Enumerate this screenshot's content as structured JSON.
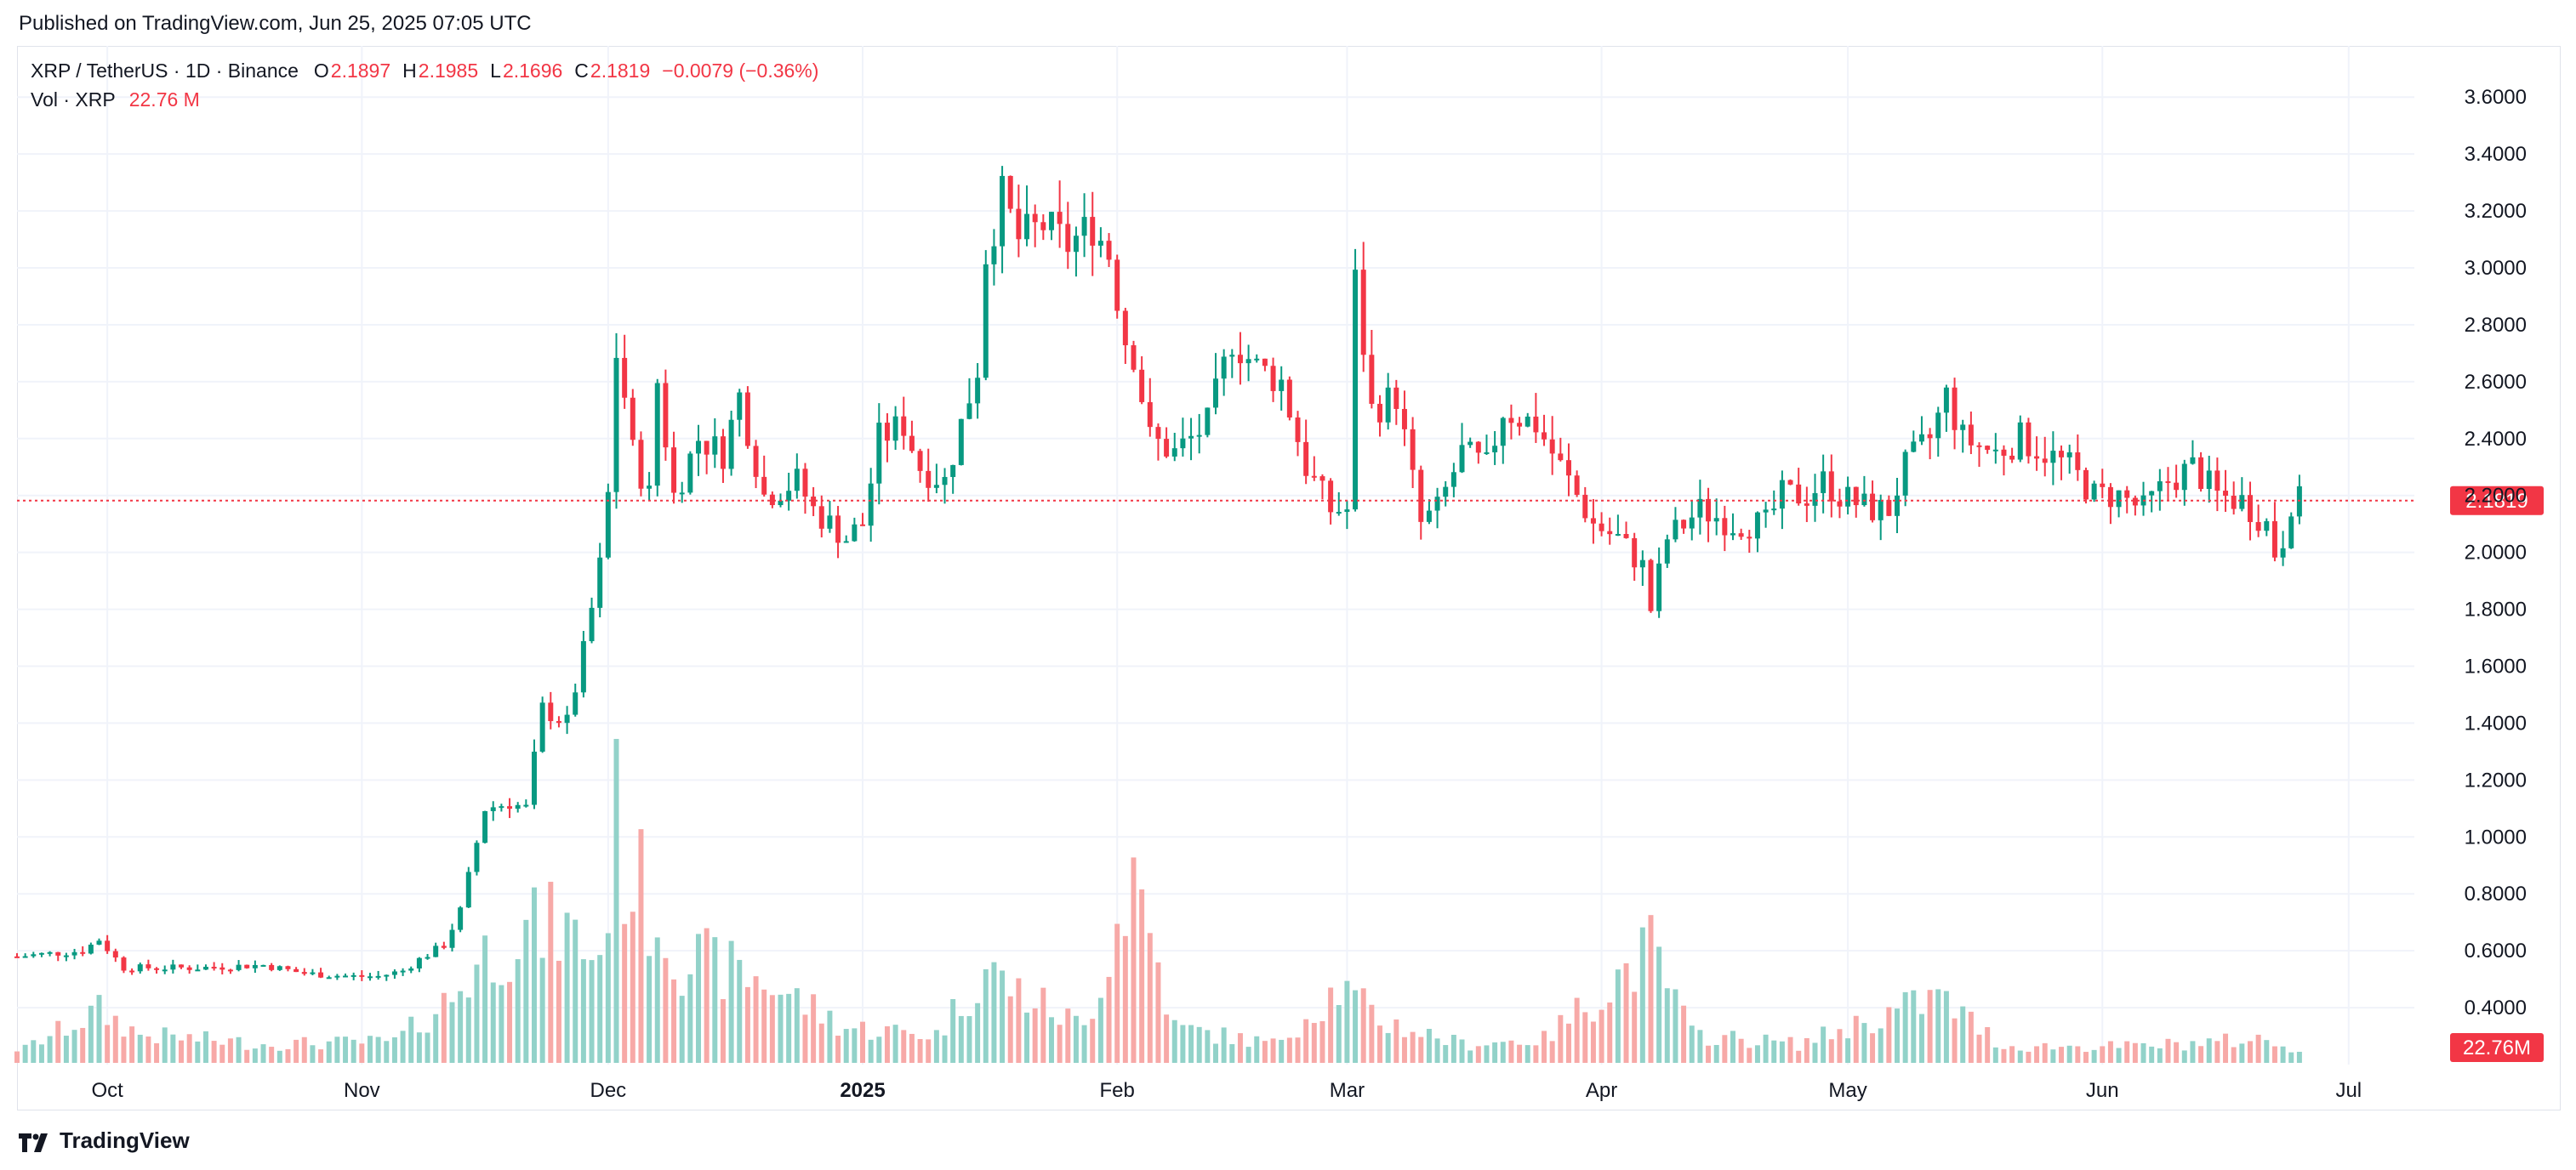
{
  "header": {
    "published": "Published on TradingView.com, Jun 25, 2025 07:05 UTC"
  },
  "legend": {
    "symbol": "XRP / TetherUS · 1D · Binance",
    "o_label": "O",
    "o_value": "2.1897",
    "h_label": "H",
    "h_value": "2.1985",
    "l_label": "L",
    "l_value": "2.1696",
    "c_label": "C",
    "c_value": "2.1819",
    "change": "−0.0079 (−0.36%)",
    "vol_label": "Vol · XRP",
    "vol_value": "22.76 M"
  },
  "footer": {
    "brand": "TradingView"
  },
  "colors": {
    "up": "#089981",
    "down": "#f23645",
    "up_vol": "#92d2c9",
    "down_vol": "#f7a9a7",
    "grid": "#f0f3fa",
    "axis_text": "#131722"
  },
  "chart_data": {
    "type": "candlestick",
    "interval": "1D",
    "y_axis": {
      "ticks": [
        "3.6000",
        "3.4000",
        "3.2000",
        "3.0000",
        "2.8000",
        "2.6000",
        "2.4000",
        "2.2000",
        "2.0000",
        "1.8000",
        "1.6000",
        "1.4000",
        "1.2000",
        "1.0000",
        "0.8000",
        "0.6000",
        "0.4000"
      ],
      "range": [
        0.2,
        3.78
      ]
    },
    "x_axis": {
      "ticks": [
        {
          "label": "Oct",
          "date": "2024-10-01",
          "bold": false
        },
        {
          "label": "Nov",
          "date": "2024-11-01",
          "bold": false
        },
        {
          "label": "Dec",
          "date": "2024-12-01",
          "bold": false
        },
        {
          "label": "2025",
          "date": "2025-01-01",
          "bold": true
        },
        {
          "label": "Feb",
          "date": "2025-02-01",
          "bold": false
        },
        {
          "label": "Mar",
          "date": "2025-03-01",
          "bold": false
        },
        {
          "label": "Apr",
          "date": "2025-04-01",
          "bold": false
        },
        {
          "label": "May",
          "date": "2025-05-01",
          "bold": false
        },
        {
          "label": "Jun",
          "date": "2025-06-01",
          "bold": false
        },
        {
          "label": "Jul",
          "date": "2025-07-01",
          "bold": false
        }
      ],
      "range": [
        "2024-09-20",
        "2025-07-09"
      ]
    },
    "last_price": {
      "value": 2.1819,
      "label": "2.1819"
    },
    "last_volume": {
      "value": 22.76,
      "label": "22.76M"
    },
    "close_points": [
      [
        "2024-09-20",
        0.58
      ],
      [
        "2024-09-28",
        0.6
      ],
      [
        "2024-09-30",
        0.64
      ],
      [
        "2024-10-03",
        0.54
      ],
      [
        "2024-10-12",
        0.54
      ],
      [
        "2024-10-20",
        0.55
      ],
      [
        "2024-10-25",
        0.52
      ],
      [
        "2024-10-31",
        0.51
      ],
      [
        "2024-11-03",
        0.51
      ],
      [
        "2024-11-06",
        0.53
      ],
      [
        "2024-11-08",
        0.57
      ],
      [
        "2024-11-11",
        0.62
      ],
      [
        "2024-11-13",
        0.74
      ],
      [
        "2024-11-16",
        1.1
      ],
      [
        "2024-11-19",
        1.12
      ],
      [
        "2024-11-21",
        1.1
      ],
      [
        "2024-11-23",
        1.45
      ],
      [
        "2024-11-26",
        1.4
      ],
      [
        "2024-11-28",
        1.65
      ],
      [
        "2024-11-30",
        1.95
      ],
      [
        "2024-12-01",
        2.2
      ],
      [
        "2024-12-02",
        2.7
      ],
      [
        "2024-12-03",
        2.55
      ],
      [
        "2024-12-04",
        2.35
      ],
      [
        "2024-12-06",
        2.2
      ],
      [
        "2024-12-07",
        2.6
      ],
      [
        "2024-12-09",
        2.2
      ],
      [
        "2024-12-12",
        2.4
      ],
      [
        "2024-12-15",
        2.35
      ],
      [
        "2024-12-17",
        2.55
      ],
      [
        "2024-12-20",
        2.2
      ],
      [
        "2024-12-24",
        2.25
      ],
      [
        "2024-12-26",
        2.15
      ],
      [
        "2024-12-30",
        2.05
      ],
      [
        "2025-01-01",
        2.1
      ],
      [
        "2025-01-03",
        2.4
      ],
      [
        "2025-01-06",
        2.45
      ],
      [
        "2025-01-08",
        2.3
      ],
      [
        "2025-01-11",
        2.25
      ],
      [
        "2025-01-13",
        2.45
      ],
      [
        "2025-01-15",
        2.65
      ],
      [
        "2025-01-16",
        3.05
      ],
      [
        "2025-01-18",
        3.25
      ],
      [
        "2025-01-20",
        3.1
      ],
      [
        "2025-01-23",
        3.15
      ],
      [
        "2025-01-26",
        3.08
      ],
      [
        "2025-01-29",
        3.15
      ],
      [
        "2025-01-31",
        3.05
      ],
      [
        "2025-02-02",
        2.75
      ],
      [
        "2025-02-03",
        2.7
      ],
      [
        "2025-02-05",
        2.4
      ],
      [
        "2025-02-08",
        2.35
      ],
      [
        "2025-02-12",
        2.45
      ],
      [
        "2025-02-15",
        2.75
      ],
      [
        "2025-02-18",
        2.65
      ],
      [
        "2025-02-21",
        2.6
      ],
      [
        "2025-02-24",
        2.3
      ],
      [
        "2025-02-27",
        2.15
      ],
      [
        "2025-03-01",
        2.15
      ],
      [
        "2025-03-02",
        2.95
      ],
      [
        "2025-03-04",
        2.5
      ],
      [
        "2025-03-07",
        2.55
      ],
      [
        "2025-03-10",
        2.1
      ],
      [
        "2025-03-12",
        2.15
      ],
      [
        "2025-03-15",
        2.35
      ],
      [
        "2025-03-18",
        2.3
      ],
      [
        "2025-03-20",
        2.5
      ],
      [
        "2025-03-24",
        2.45
      ],
      [
        "2025-03-27",
        2.3
      ],
      [
        "2025-03-31",
        2.1
      ],
      [
        "2025-04-03",
        2.05
      ],
      [
        "2025-04-06",
        1.95
      ],
      [
        "2025-04-07",
        1.8
      ],
      [
        "2025-04-09",
        2.05
      ],
      [
        "2025-04-13",
        2.15
      ],
      [
        "2025-04-17",
        2.1
      ],
      [
        "2025-04-21",
        2.1
      ],
      [
        "2025-04-23",
        2.2
      ],
      [
        "2025-04-26",
        2.2
      ],
      [
        "2025-04-28",
        2.25
      ],
      [
        "2025-04-30",
        2.2
      ],
      [
        "2025-05-04",
        2.15
      ],
      [
        "2025-05-06",
        2.15
      ],
      [
        "2025-05-08",
        2.3
      ],
      [
        "2025-05-11",
        2.4
      ],
      [
        "2025-05-13",
        2.55
      ],
      [
        "2025-05-15",
        2.4
      ],
      [
        "2025-05-19",
        2.35
      ],
      [
        "2025-05-22",
        2.4
      ],
      [
        "2025-05-25",
        2.35
      ],
      [
        "2025-05-28",
        2.3
      ],
      [
        "2025-05-31",
        2.2
      ],
      [
        "2025-06-03",
        2.2
      ],
      [
        "2025-06-06",
        2.15
      ],
      [
        "2025-06-09",
        2.25
      ],
      [
        "2025-06-12",
        2.3
      ],
      [
        "2025-06-15",
        2.2
      ],
      [
        "2025-06-18",
        2.18
      ],
      [
        "2025-06-21",
        2.1
      ],
      [
        "2025-06-22",
        2.0
      ],
      [
        "2025-06-23",
        2.05
      ],
      [
        "2025-06-24",
        2.18
      ],
      [
        "2025-06-25",
        2.18
      ]
    ],
    "volume_points": [
      [
        "2024-09-22",
        0.08
      ],
      [
        "2024-09-30",
        0.22
      ],
      [
        "2024-10-05",
        0.12
      ],
      [
        "2024-10-20",
        0.08
      ],
      [
        "2024-11-05",
        0.09
      ],
      [
        "2024-11-12",
        0.28
      ],
      [
        "2024-11-16",
        0.46
      ],
      [
        "2024-11-20",
        0.55
      ],
      [
        "2024-11-25",
        0.58
      ],
      [
        "2024-11-30",
        0.45
      ],
      [
        "2024-12-02",
        1.05
      ],
      [
        "2024-12-03",
        0.85
      ],
      [
        "2024-12-10",
        0.45
      ],
      [
        "2024-12-20",
        0.35
      ],
      [
        "2024-12-30",
        0.15
      ],
      [
        "2025-01-10",
        0.12
      ],
      [
        "2025-01-16",
        0.4
      ],
      [
        "2025-01-20",
        0.3
      ],
      [
        "2025-01-28",
        0.15
      ],
      [
        "2025-02-03",
        0.82
      ],
      [
        "2025-02-08",
        0.15
      ],
      [
        "2025-02-20",
        0.08
      ],
      [
        "2025-02-28",
        0.32
      ],
      [
        "2025-03-05",
        0.18
      ],
      [
        "2025-03-15",
        0.08
      ],
      [
        "2025-03-25",
        0.1
      ],
      [
        "2025-04-07",
        0.48
      ],
      [
        "2025-04-12",
        0.12
      ],
      [
        "2025-04-25",
        0.08
      ],
      [
        "2025-05-12",
        0.28
      ],
      [
        "2025-05-20",
        0.07
      ],
      [
        "2025-06-05",
        0.07
      ],
      [
        "2025-06-20",
        0.1
      ],
      [
        "2025-06-25",
        0.06
      ]
    ]
  }
}
